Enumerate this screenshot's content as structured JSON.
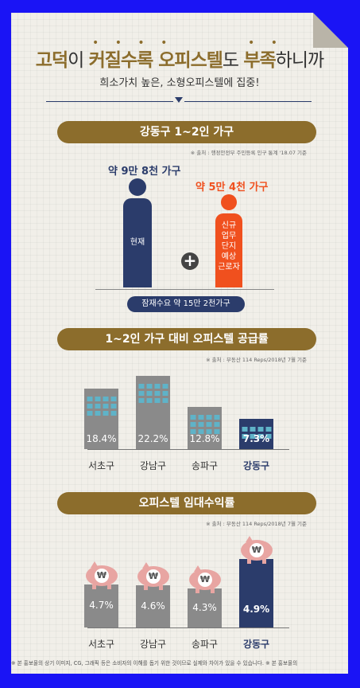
{
  "headline": {
    "part1": "고덕",
    "part2": "이 ",
    "part3": "커질수록 오피스텔",
    "part4": "도 ",
    "part5": "부족",
    "part6": "하니까"
  },
  "subhead": "희소가치 높은, 소형오피스텔에 집중!",
  "section1": {
    "title": "강동구 1~2인 가구",
    "source": "※ 출처 : 행정안전부 주민등록 인구 통계 '18.07 기준",
    "current": {
      "label": "약 9만 8천 가구",
      "bar_text": "현재",
      "color": "#2b3c6b"
    },
    "new": {
      "label": "약 5만 4천 가구",
      "bar_lines": [
        "신규",
        "업무",
        "단지",
        "예상",
        "근로자"
      ],
      "color": "#f0501e"
    },
    "plus": "+",
    "total": "잠재수요 약 15만 2천가구"
  },
  "section2": {
    "title": "1~2인 가구 대비 오피스텔 공급률",
    "source": "※ 출처 : 부동산 114 Reps/2018년 7월 기준"
  },
  "section3": {
    "title": "오피스텔 임대수익률",
    "source": "※ 출처 : 부동산 114 Reps/2018년 7월 기준",
    "coin_symbol": "₩"
  },
  "chart_data": [
    {
      "type": "bar",
      "title": "1~2인 가구 대비 오피스텔 공급률",
      "categories": [
        "서초구",
        "강남구",
        "송파구",
        "강동구"
      ],
      "values": [
        18.4,
        22.2,
        12.8,
        7.3
      ],
      "labels": [
        "18.4%",
        "22.2%",
        "12.8%",
        "7.3%"
      ],
      "highlight": "강동구",
      "colors": {
        "default": "#8a8a8a",
        "highlight": "#2b3c6b"
      }
    },
    {
      "type": "bar",
      "title": "오피스텔 임대수익률",
      "categories": [
        "서초구",
        "강남구",
        "송파구",
        "강동구"
      ],
      "values": [
        4.7,
        4.6,
        4.3,
        4.9
      ],
      "labels": [
        "4.7%",
        "4.6%",
        "4.3%",
        "4.9%"
      ],
      "highlight": "강동구",
      "colors": {
        "default": "#8a8a8a",
        "highlight": "#2b3c6b"
      }
    }
  ],
  "footnote": "※ 본 홍보물의 상기 이미지, CG, 그래픽 등은 소비자의 이해를 돕기 위한 것이므로 실제와 차이가 있을 수 있습니다. ※ 본 홍보물의"
}
